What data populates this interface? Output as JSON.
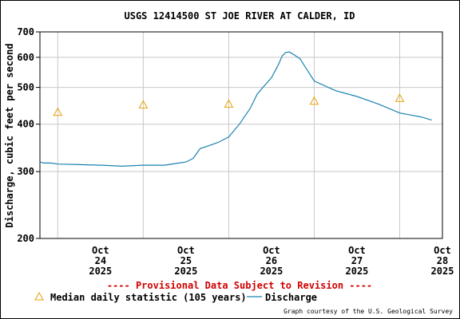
{
  "chart_data": {
    "type": "line",
    "title": "USGS 12414500 ST JOE RIVER AT CALDER, ID",
    "ylabel": "Discharge, cubic feet per second",
    "y_scale": "log",
    "ylim": [
      200,
      700
    ],
    "y_ticks": [
      {
        "value": 200,
        "label": "200"
      },
      {
        "value": 300,
        "label": "300"
      },
      {
        "value": 400,
        "label": "400"
      },
      {
        "value": 500,
        "label": "500"
      },
      {
        "value": 600,
        "label": "600"
      },
      {
        "value": 700,
        "label": "700"
      }
    ],
    "xlim": [
      "2025-10-23T19:00",
      "2025-10-28T12:00"
    ],
    "x_ticks": [
      {
        "date": "2025-10-24",
        "lines": [
          "Oct",
          "24",
          "2025"
        ]
      },
      {
        "date": "2025-10-25",
        "lines": [
          "Oct",
          "25",
          "2025"
        ]
      },
      {
        "date": "2025-10-26",
        "lines": [
          "Oct",
          "26",
          "2025"
        ]
      },
      {
        "date": "2025-10-27",
        "lines": [
          "Oct",
          "27",
          "2025"
        ]
      },
      {
        "date": "2025-10-28",
        "lines": [
          "Oct",
          "28",
          "2025"
        ]
      }
    ],
    "grid": true,
    "series": [
      {
        "name": "Discharge",
        "color": "#1a82b0",
        "x": [
          "2025-10-23T19:00",
          "2025-10-23T20:00",
          "2025-10-23T22:00",
          "2025-10-24T00:00",
          "2025-10-24T06:00",
          "2025-10-24T12:00",
          "2025-10-24T18:00",
          "2025-10-25T00:00",
          "2025-10-25T06:00",
          "2025-10-25T09:00",
          "2025-10-25T12:00",
          "2025-10-25T14:00",
          "2025-10-25T16:00",
          "2025-10-25T18:00",
          "2025-10-25T21:00",
          "2025-10-26T00:00",
          "2025-10-26T03:00",
          "2025-10-26T06:00",
          "2025-10-26T08:00",
          "2025-10-26T10:00",
          "2025-10-26T12:00",
          "2025-10-26T14:00",
          "2025-10-26T15:00",
          "2025-10-26T16:00",
          "2025-10-26T17:00",
          "2025-10-26T18:00",
          "2025-10-26T20:00",
          "2025-10-27T00:00",
          "2025-10-27T06:00",
          "2025-10-27T12:00",
          "2025-10-27T18:00",
          "2025-10-28T00:00",
          "2025-10-28T06:00",
          "2025-10-28T09:00"
        ],
        "y": [
          318,
          316,
          316,
          314,
          313,
          312,
          310,
          312,
          312,
          315,
          318,
          325,
          345,
          350,
          358,
          370,
          400,
          440,
          480,
          505,
          530,
          575,
          605,
          618,
          620,
          612,
          595,
          520,
          490,
          473,
          452,
          428,
          418,
          410
        ]
      }
    ],
    "markers": {
      "name": "Median daily statistic (105 years)",
      "color": "#e8a000",
      "symbol": "triangle",
      "x": [
        "2025-10-24",
        "2025-10-25",
        "2025-10-26",
        "2025-10-27",
        "2025-10-28"
      ],
      "y": [
        430,
        450,
        452,
        460,
        468
      ]
    },
    "legend_position": "bottom"
  },
  "notice": "---- Provisional Data Subject to Revision ----",
  "credit": "Graph courtesy of the U.S. Geological Survey"
}
